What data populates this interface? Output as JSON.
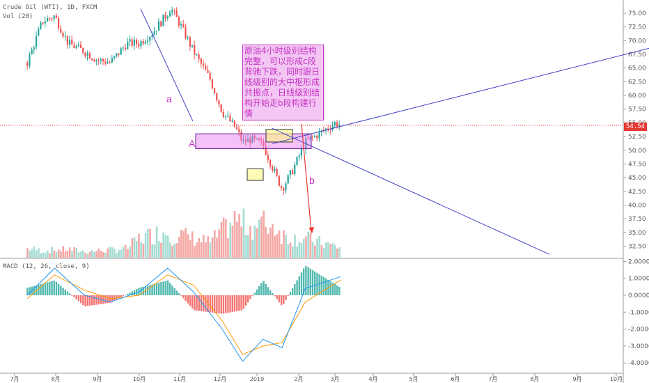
{
  "header": {
    "symbol_line": "Crude Oil (WTI), 1D, FXCM",
    "vol_line": "Vol (20)"
  },
  "price_axis": {
    "ticks": [
      "75.00",
      "72.50",
      "70.00",
      "67.50",
      "65.00",
      "62.50",
      "60.00",
      "57.50",
      "55.00",
      "52.50",
      "50.00",
      "47.50",
      "45.00",
      "42.50",
      "40.00",
      "37.50",
      "35.00",
      "32.50"
    ],
    "current_price": "54.54",
    "current_price_color": "#e53935"
  },
  "macd_axis": {
    "label": "MACD (12, 26, close, 9)",
    "ticks": [
      "2.0000",
      "1.0000",
      "0.0000",
      "-1.0000",
      "-2.0000",
      "-3.0000",
      "-4.0000"
    ]
  },
  "time_axis": {
    "ticks": [
      "7月",
      "8月",
      "9月",
      "10月",
      "11月",
      "12月",
      "2019",
      "2月",
      "3月",
      "4月",
      "5月",
      "6月",
      "7月",
      "8月",
      "9月",
      "10月"
    ]
  },
  "annotations": {
    "note": "原油4小时级别结构完整，可以形成c段背驰下跌，同时跟日线级别的大中枢形成共振点，日线级别结构开始走b段构建行情",
    "label_a": "a",
    "label_A": "A",
    "label_b": "b"
  },
  "colors": {
    "up": "#26a69a",
    "down": "#ef5350",
    "annotation": "#c433c4",
    "trendline": "#3f3fc7",
    "macd_line": "#2196f3",
    "signal_line": "#ff9800"
  },
  "chart_data": [
    {
      "type": "candlestick",
      "title": "Crude Oil (WTI), 1D, FXCM",
      "ylim": [
        31,
        77
      ],
      "x": [
        "2018-06-20",
        "2018-07-01",
        "2018-07-10",
        "2018-07-20",
        "2018-08-01",
        "2018-08-10",
        "2018-08-20",
        "2018-09-01",
        "2018-09-10",
        "2018-09-20",
        "2018-10-01",
        "2018-10-03",
        "2018-10-10",
        "2018-10-20",
        "2018-11-01",
        "2018-11-10",
        "2018-11-20",
        "2018-11-25",
        "2018-12-01",
        "2018-12-10",
        "2018-12-20",
        "2018-12-24",
        "2019-01-01",
        "2019-01-10",
        "2019-01-20",
        "2019-02-01",
        "2019-02-05"
      ],
      "close": [
        66.0,
        73.5,
        74.5,
        69.5,
        68.0,
        66.5,
        66.0,
        69.5,
        69.5,
        71.5,
        75.0,
        76.0,
        73.0,
        68.0,
        63.0,
        57.0,
        54.0,
        51.5,
        52.0,
        51.0,
        45.0,
        43.0,
        46.5,
        51.5,
        53.0,
        55.0,
        54.5
      ],
      "volume_ylim": [
        0,
        100000
      ],
      "volume": [
        12000,
        9000,
        10000,
        11000,
        8000,
        9000,
        10000,
        12000,
        25000,
        30000,
        35000,
        28000,
        30000,
        25000,
        20000,
        35000,
        50000,
        45000,
        40000,
        45000,
        40000,
        30000,
        25000,
        25000,
        20000,
        15000,
        12000
      ]
    },
    {
      "type": "line",
      "title": "MACD (12, 26, close, 9)",
      "ylim": [
        -4.3,
        2.1
      ],
      "x": [
        "2018-06-20",
        "2018-07-10",
        "2018-08-01",
        "2018-08-20",
        "2018-09-10",
        "2018-10-01",
        "2018-10-20",
        "2018-11-10",
        "2018-11-25",
        "2018-12-10",
        "2018-12-24",
        "2019-01-10",
        "2019-02-05"
      ],
      "series": [
        {
          "name": "MACD",
          "values": [
            0.0,
            1.6,
            0.0,
            -0.4,
            0.2,
            1.6,
            0.2,
            -2.0,
            -3.9,
            -2.6,
            -3.1,
            0.4,
            1.1
          ]
        },
        {
          "name": "Signal",
          "values": [
            -0.2,
            1.2,
            0.3,
            -0.2,
            0.0,
            1.2,
            0.6,
            -1.5,
            -3.5,
            -3.0,
            -2.8,
            -0.4,
            0.9
          ]
        }
      ]
    }
  ]
}
